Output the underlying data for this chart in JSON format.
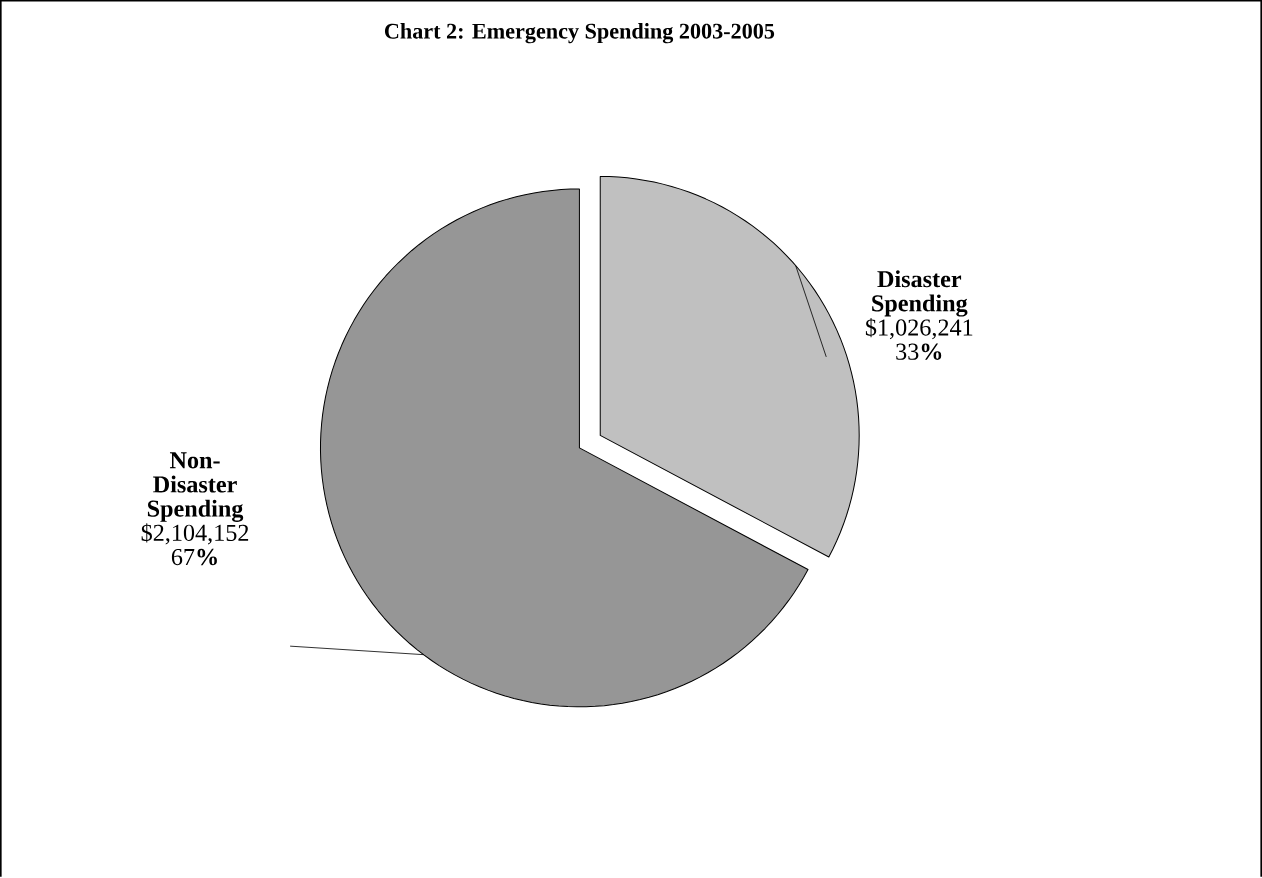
{
  "chart_data": {
    "type": "pie",
    "title": "Chart 2: Emergency Spending 2003-2005",
    "categories": [
      "Disaster Spending",
      "Non-Disaster Spending"
    ],
    "values": [
      1026241,
      2104152
    ],
    "colors": [
      "#c0c0c0",
      "#969696"
    ],
    "value_labels": [
      "$1,026,241 33**%**",
      "$2,104,152 67**%**"
    ],
    "legend": false
  }
}
